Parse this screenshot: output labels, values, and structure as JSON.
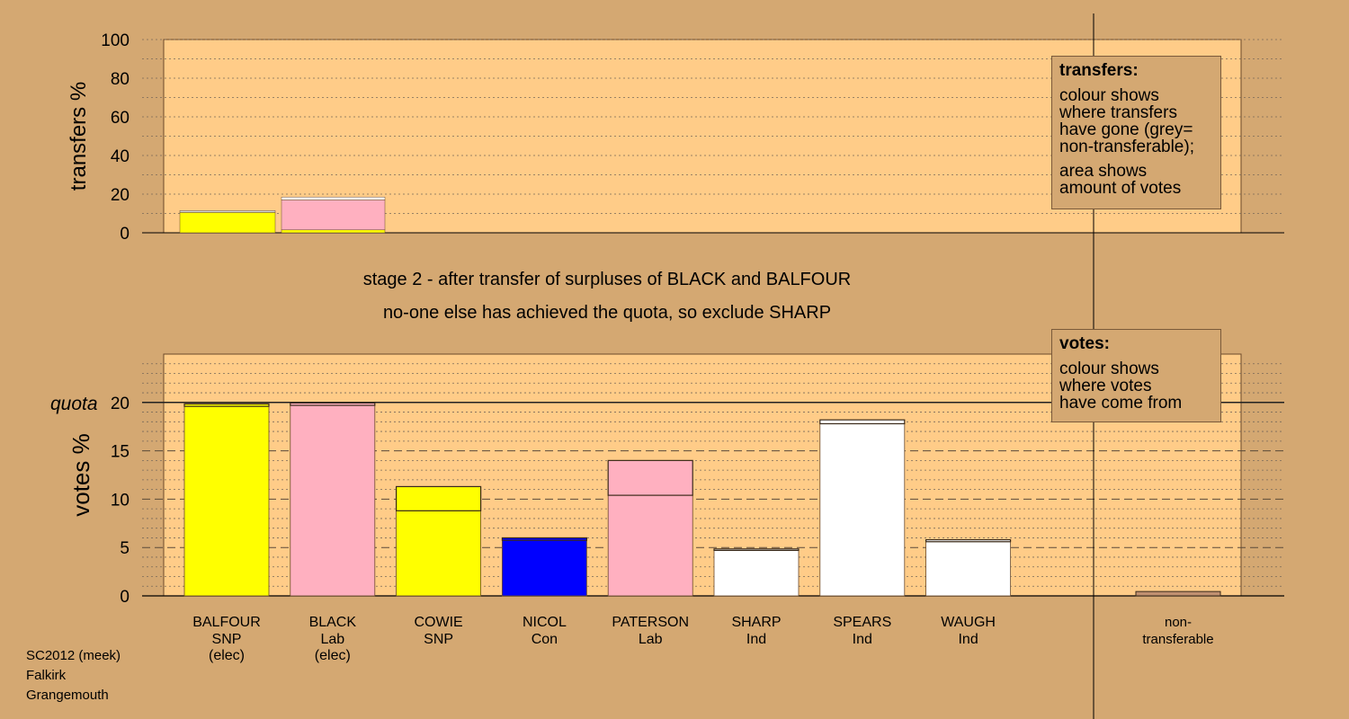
{
  "chart_data": {
    "type": "bar",
    "stage_title": "stage 2 - after transfer of surpluses of BLACK and BALFOUR",
    "stage_note": "no-one else has achieved the quota, so exclude SHARP",
    "transfers_chart": {
      "ylabel": "transfers %",
      "ylim": [
        0,
        100
      ],
      "yticks": [
        0,
        20,
        40,
        60,
        80,
        100
      ],
      "bars": [
        {
          "source": "BALFOUR",
          "segments": [
            {
              "to": "SNP",
              "value": 10.5,
              "color": "#ffff00"
            },
            {
              "to": "non-transferable",
              "value": 1.0,
              "color": "#d3d3d3"
            }
          ]
        },
        {
          "source": "BLACK",
          "segments": [
            {
              "to": "SNP",
              "value": 1.5,
              "color": "#ffff00"
            },
            {
              "to": "Lab",
              "value": 15.5,
              "color": "#ffb0c0"
            },
            {
              "to": "non-transferable",
              "value": 1.5,
              "color": "#ffffff"
            }
          ]
        }
      ]
    },
    "votes_chart": {
      "ylabel": "votes %",
      "ylim": [
        0,
        25
      ],
      "yticks": [
        0,
        5,
        10,
        15,
        20
      ],
      "quota": 20,
      "quota_label": "quota",
      "candidates": [
        {
          "name": "BALFOUR",
          "party": "SNP",
          "status": "(elec)",
          "color": "#ffff00",
          "first": 19.6,
          "transfer": 0.25
        },
        {
          "name": "BLACK",
          "party": "Lab",
          "status": "(elec)",
          "color": "#ffb0c0",
          "first": 19.7,
          "transfer": 0.25
        },
        {
          "name": "COWIE",
          "party": "SNP",
          "status": "",
          "color": "#ffff00",
          "first": 8.8,
          "transfer": 2.5
        },
        {
          "name": "NICOL",
          "party": "Con",
          "status": "",
          "color": "#0000ff",
          "first": 5.75,
          "transfer": 0.25
        },
        {
          "name": "PATERSON",
          "party": "Lab",
          "status": "",
          "color": "#ffb0c0",
          "first": 10.4,
          "transfer": 3.6
        },
        {
          "name": "SHARP",
          "party": "Ind",
          "status": "",
          "color": "#ffffff",
          "first": 4.7,
          "transfer": 0.15
        },
        {
          "name": "SPEARS",
          "party": "Ind",
          "status": "",
          "color": "#ffffff",
          "first": 17.8,
          "transfer": 0.4
        },
        {
          "name": "WAUGH",
          "party": "Ind",
          "status": "",
          "color": "#ffffff",
          "first": 5.6,
          "transfer": 0.2
        }
      ],
      "nontransferable": {
        "label_line1": "non-",
        "label_line2": "transferable",
        "value": 0.45,
        "color": "#c09070"
      }
    }
  },
  "legend_transfers": {
    "title": "transfers:",
    "lines1": [
      "colour shows",
      "where transfers",
      "have gone (grey=",
      "non-transferable);"
    ],
    "lines2": [
      "area shows",
      "amount of votes"
    ]
  },
  "legend_votes": {
    "title": "votes:",
    "lines": [
      "colour shows",
      "where votes",
      "have come from"
    ]
  },
  "footer": {
    "line1": "SC2012 (meek)",
    "line2": "Falkirk",
    "line3": "Grangemouth"
  },
  "colors": {
    "background": "#d4a872",
    "plot_area": "#ffcc88"
  }
}
